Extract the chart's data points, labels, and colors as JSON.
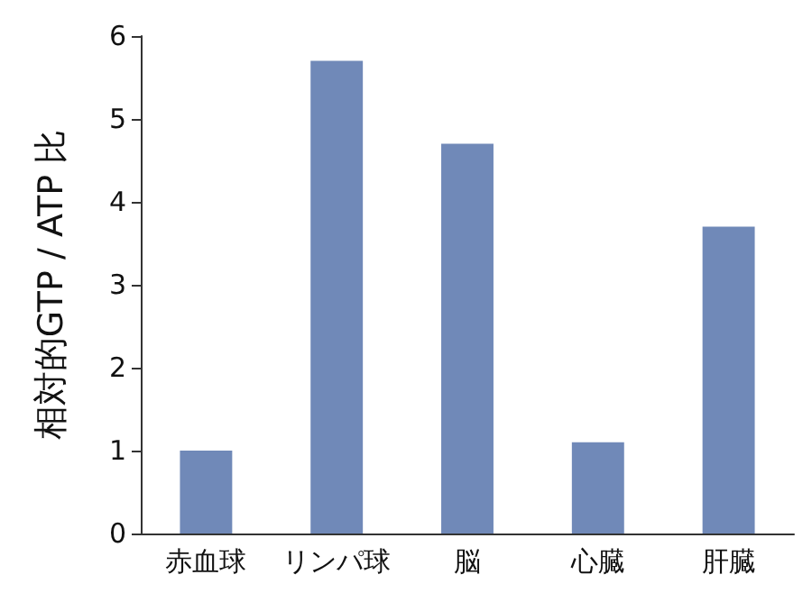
{
  "chart_data": {
    "type": "bar",
    "ylabel": "相対的GTP / ATP 比",
    "categories": [
      "赤血球",
      "リンパ球",
      "脳",
      "心臓",
      "肝臓"
    ],
    "values": [
      1.0,
      5.7,
      4.7,
      1.1,
      3.7
    ],
    "color": "#7089b8",
    "ylim": [
      0,
      6
    ],
    "yticks": [
      0,
      1,
      2,
      3,
      4,
      5,
      6
    ],
    "grid": false
  }
}
